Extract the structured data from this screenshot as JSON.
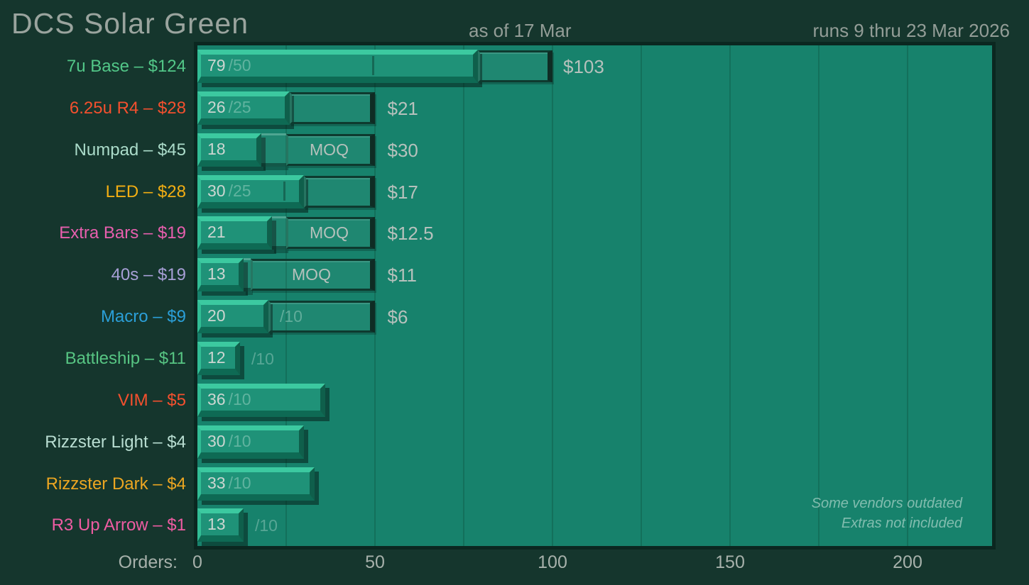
{
  "header": {
    "title": "DCS Solar Green",
    "as_of": "as of 17 Mar",
    "runs": "runs 9 thru 23 Mar 2026"
  },
  "axis": {
    "label": "Orders:",
    "ticks": [
      "0",
      "50",
      "100",
      "150",
      "200"
    ],
    "tick_values": [
      0,
      50,
      100,
      150,
      200
    ],
    "gridline_interval": 25,
    "max_orders": 224
  },
  "footnote": {
    "line1": "Some vendors outdated",
    "line2": "Extras not included"
  },
  "colors": {
    "page_bg": "#15362d",
    "plot_bg": "#17826c",
    "gridline": "#13705b",
    "bar_face": "#1f9278",
    "bar_highlight": "#3cc9a0",
    "bar_shadow": "#0e6a54",
    "text_gray": "#9aa49e",
    "value_text": "#ccd6d1",
    "price_text": "#b6c1bc"
  },
  "chart_data": {
    "type": "bar",
    "orientation": "horizontal",
    "title": "DCS Solar Green",
    "xlabel": "Orders",
    "xlim": [
      0,
      224
    ],
    "grid": true,
    "categories": [
      "7u Base – $124",
      "6.25u R4 – $28",
      "Numpad – $45",
      "LED – $28",
      "Extra Bars – $19",
      "40s – $19",
      "Macro – $9",
      "Battleship – $11",
      "VIM – $5",
      "Rizzster Light – $4",
      "Rizzster Dark – $4",
      "R3 Up Arrow – $1"
    ],
    "values": [
      79,
      26,
      18,
      30,
      21,
      13,
      20,
      12,
      36,
      30,
      33,
      13
    ],
    "rows": [
      {
        "label": "7u Base – $124",
        "color": "#52c788",
        "orders": 79,
        "value_text": "79",
        "goal_text": "/50",
        "goal_pos": "inside",
        "tick_at": 50,
        "box": {
          "from": 79,
          "to": 100
        },
        "price": "$103",
        "price_at": 103
      },
      {
        "label": "6.25u R4 – $28",
        "color": "#f4502e",
        "orders": 26,
        "value_text": "26",
        "goal_text": "/25",
        "goal_pos": "inside",
        "box": {
          "from": 26,
          "to": 50
        },
        "price": "$21",
        "price_at": 53.5
      },
      {
        "label": "Numpad – $45",
        "color": "#abdcca",
        "orders": 18,
        "value_text": "18",
        "strip": {
          "from": 18,
          "to": 25
        },
        "box": {
          "from": 25,
          "to": 50,
          "label": "MOQ"
        },
        "price": "$30",
        "price_at": 53.5
      },
      {
        "label": "LED – $28",
        "color": "#f2ae13",
        "orders": 30,
        "value_text": "30",
        "goal_text": "/25",
        "goal_pos": "inside",
        "tick_at": 25,
        "box": {
          "from": 30,
          "to": 50
        },
        "price": "$17",
        "price_at": 53.5
      },
      {
        "label": "Extra Bars – $19",
        "color": "#e85fae",
        "orders": 21,
        "value_text": "21",
        "strip": {
          "from": 21,
          "to": 25
        },
        "box": {
          "from": 25,
          "to": 50,
          "label": "MOQ"
        },
        "price": "$12.5",
        "price_at": 53.5
      },
      {
        "label": "40s – $19",
        "color": "#a79fd6",
        "orders": 13,
        "value_text": "13",
        "strip": {
          "from": 13,
          "to": 15
        },
        "box": {
          "from": 15,
          "to": 50,
          "label": "MOQ"
        },
        "price": "$11",
        "price_at": 53.5
      },
      {
        "label": "Macro – $9",
        "color": "#2b9fd8",
        "orders": 20,
        "value_text": "20",
        "box": {
          "from": 20,
          "to": 50,
          "dim_label": "/10"
        },
        "price": "$6",
        "price_at": 53.5
      },
      {
        "label": "Battleship – $11",
        "color": "#57c583",
        "orders": 12,
        "value_text": "12",
        "goal_text": "/10",
        "goal_pos": "outside"
      },
      {
        "label": "VIM – $5",
        "color": "#f4502e",
        "orders": 36,
        "value_text": "36",
        "goal_text": "/10",
        "goal_pos": "inside"
      },
      {
        "label": "Rizzster Light – $4",
        "color": "#b9ded2",
        "orders": 30,
        "value_text": "30",
        "goal_text": "/10",
        "goal_pos": "inside"
      },
      {
        "label": "Rizzster Dark – $4",
        "color": "#eca621",
        "orders": 33,
        "value_text": "33",
        "goal_text": "/10",
        "goal_pos": "inside"
      },
      {
        "label": "R3 Up Arrow – $1",
        "color": "#ee5ca2",
        "orders": 13,
        "value_text": "13",
        "goal_text": "/10",
        "goal_pos": "outside"
      }
    ]
  }
}
